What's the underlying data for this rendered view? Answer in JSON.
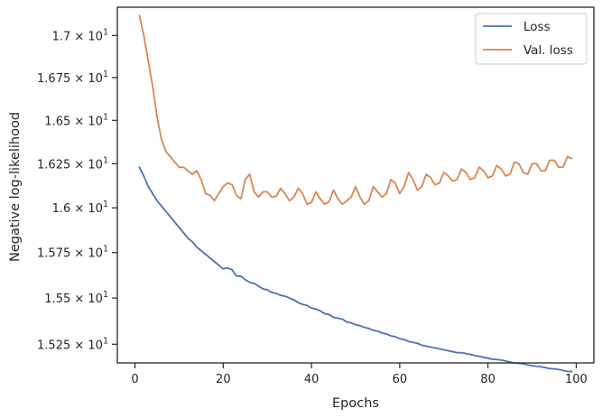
{
  "chart_data": {
    "type": "line",
    "xlabel": "Epochs",
    "ylabel": "Negative log-likelihood",
    "xlim": [
      -4,
      104
    ],
    "ylim": [
      15.15,
      17.17
    ],
    "y_scale": "log",
    "grid": false,
    "legend_position": "top-right",
    "x_ticks": [
      {
        "value": 0,
        "label": "0"
      },
      {
        "value": 20,
        "label": "20"
      },
      {
        "value": 40,
        "label": "40"
      },
      {
        "value": 60,
        "label": "60"
      },
      {
        "value": 80,
        "label": "80"
      },
      {
        "value": 100,
        "label": "100"
      }
    ],
    "y_ticks": [
      {
        "value": 15.25,
        "mantissa": "1.525"
      },
      {
        "value": 15.5,
        "mantissa": "1.55"
      },
      {
        "value": 15.75,
        "mantissa": "1.575"
      },
      {
        "value": 16.0,
        "mantissa": "1.6"
      },
      {
        "value": 16.25,
        "mantissa": "1.625"
      },
      {
        "value": 16.5,
        "mantissa": "1.65"
      },
      {
        "value": 16.75,
        "mantissa": "1.675"
      },
      {
        "value": 17.0,
        "mantissa": "1.7"
      }
    ],
    "y_tick_suffix": {
      "times": "×",
      "base": "10",
      "exponent": "1"
    },
    "series": [
      {
        "name": "Loss",
        "color": "#4c72b0",
        "x": [
          1,
          2,
          3,
          4,
          5,
          6,
          7,
          8,
          9,
          10,
          11,
          12,
          13,
          14,
          15,
          16,
          17,
          18,
          19,
          20,
          21,
          22,
          23,
          24,
          25,
          26,
          27,
          28,
          29,
          30,
          31,
          32,
          33,
          34,
          35,
          36,
          37,
          38,
          39,
          40,
          41,
          42,
          43,
          44,
          45,
          46,
          47,
          48,
          49,
          50,
          51,
          52,
          53,
          54,
          55,
          56,
          57,
          58,
          59,
          60,
          61,
          62,
          63,
          64,
          65,
          66,
          67,
          68,
          69,
          70,
          71,
          72,
          73,
          74,
          75,
          76,
          77,
          78,
          79,
          80,
          81,
          82,
          83,
          84,
          85,
          86,
          87,
          88,
          89,
          90,
          91,
          92,
          93,
          94,
          95,
          96,
          97,
          98,
          99
        ],
        "values": [
          16.23,
          16.18,
          16.12,
          16.08,
          16.04,
          16.01,
          15.98,
          15.95,
          15.92,
          15.89,
          15.86,
          15.83,
          15.81,
          15.78,
          15.76,
          15.74,
          15.72,
          15.7,
          15.68,
          15.66,
          15.665,
          15.655,
          15.62,
          15.62,
          15.6,
          15.585,
          15.58,
          15.565,
          15.55,
          15.545,
          15.53,
          15.525,
          15.515,
          15.51,
          15.5,
          15.49,
          15.475,
          15.465,
          15.46,
          15.445,
          15.44,
          15.43,
          15.415,
          15.41,
          15.395,
          15.39,
          15.385,
          15.37,
          15.365,
          15.355,
          15.35,
          15.34,
          15.335,
          15.325,
          15.32,
          15.31,
          15.305,
          15.295,
          15.29,
          15.28,
          15.275,
          15.265,
          15.26,
          15.255,
          15.245,
          15.24,
          15.235,
          15.23,
          15.225,
          15.22,
          15.215,
          15.21,
          15.205,
          15.205,
          15.2,
          15.195,
          15.19,
          15.185,
          15.18,
          15.175,
          15.17,
          15.168,
          15.165,
          15.16,
          15.155,
          15.15,
          15.148,
          15.145,
          15.14,
          15.135,
          15.132,
          15.13,
          15.125,
          15.12,
          15.118,
          15.115,
          15.11,
          15.105,
          15.104
        ]
      },
      {
        "name": "Val. loss",
        "color": "#dd8452",
        "x": [
          1,
          2,
          3,
          4,
          5,
          6,
          7,
          8,
          9,
          10,
          11,
          12,
          13,
          14,
          15,
          16,
          17,
          18,
          19,
          20,
          21,
          22,
          23,
          24,
          25,
          26,
          27,
          28,
          29,
          30,
          31,
          32,
          33,
          34,
          35,
          36,
          37,
          38,
          39,
          40,
          41,
          42,
          43,
          44,
          45,
          46,
          47,
          48,
          49,
          50,
          51,
          52,
          53,
          54,
          55,
          56,
          57,
          58,
          59,
          60,
          61,
          62,
          63,
          64,
          65,
          66,
          67,
          68,
          69,
          70,
          71,
          72,
          73,
          74,
          75,
          76,
          77,
          78,
          79,
          80,
          81,
          82,
          83,
          84,
          85,
          86,
          87,
          88,
          89,
          90,
          91,
          92,
          93,
          94,
          95,
          96,
          97,
          98,
          99
        ],
        "values": [
          17.12,
          17.0,
          16.85,
          16.7,
          16.52,
          16.39,
          16.32,
          16.29,
          16.26,
          16.23,
          16.23,
          16.21,
          16.19,
          16.21,
          16.16,
          16.08,
          16.07,
          16.04,
          16.08,
          16.12,
          16.14,
          16.13,
          16.07,
          16.05,
          16.16,
          16.19,
          16.09,
          16.06,
          16.09,
          16.09,
          16.06,
          16.065,
          16.11,
          16.08,
          16.04,
          16.06,
          16.11,
          16.08,
          16.02,
          16.03,
          16.09,
          16.05,
          16.02,
          16.035,
          16.1,
          16.05,
          16.02,
          16.04,
          16.06,
          16.12,
          16.06,
          16.02,
          16.04,
          16.12,
          16.09,
          16.06,
          16.08,
          16.16,
          16.14,
          16.08,
          16.12,
          16.2,
          16.16,
          16.1,
          16.12,
          16.19,
          16.17,
          16.13,
          16.14,
          16.2,
          16.18,
          16.15,
          16.16,
          16.22,
          16.2,
          16.16,
          16.17,
          16.23,
          16.21,
          16.17,
          16.18,
          16.24,
          16.22,
          16.18,
          16.19,
          16.26,
          16.25,
          16.2,
          16.19,
          16.25,
          16.25,
          16.21,
          16.21,
          16.27,
          16.27,
          16.23,
          16.23,
          16.29,
          16.28
        ]
      }
    ]
  }
}
